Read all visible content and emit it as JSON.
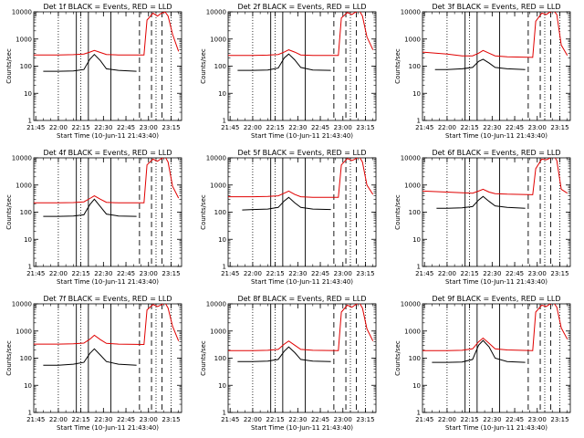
{
  "chart_data": [
    {
      "type": "line",
      "title": "Det 1f BLACK = Events, RED = LLD",
      "xlabel": "Start Time (10-Jun-11 21:43:40)",
      "ylabel": "Counts/sec",
      "yscale": "log",
      "ylim": [
        1,
        10000
      ],
      "xlim": [
        "21:43:40",
        "23:22:00"
      ],
      "x_ticks": [
        "21:45",
        "22:00",
        "22:15",
        "22:30",
        "22:45",
        "23:00",
        "23:15"
      ],
      "y_ticks": [
        "1",
        "10",
        "100",
        "1000",
        "10000"
      ],
      "grid": false,
      "series": [
        {
          "name": "Events",
          "color": "#000000",
          "x": [
            "21:50",
            "22:00",
            "22:10",
            "22:17",
            "22:21",
            "22:24",
            "22:28",
            "22:32",
            "22:40",
            "22:52"
          ],
          "values": [
            65,
            65,
            67,
            75,
            180,
            270,
            160,
            80,
            70,
            65
          ]
        },
        {
          "name": "LLD",
          "color": "#e00000",
          "x": [
            "21:43:40",
            "22:00",
            "22:10",
            "22:17",
            "22:21",
            "22:24",
            "22:28",
            "22:32",
            "22:40",
            "22:57",
            "22:59",
            "23:03",
            "23:06",
            "23:08",
            "23:11",
            "23:13",
            "23:16",
            "23:20"
          ],
          "values": [
            260,
            260,
            265,
            280,
            330,
            380,
            320,
            270,
            260,
            260,
            5000,
            9000,
            7000,
            8500,
            10000,
            7000,
            1500,
            350
          ]
        }
      ]
    },
    {
      "type": "line",
      "title": "Det 2f BLACK = Events, RED = LLD",
      "xlabel": "Start Time (10-Jun-11 21:43:40)",
      "ylabel": "Counts/sec",
      "yscale": "log",
      "ylim": [
        1,
        10000
      ],
      "xlim": [
        "21:43:40",
        "23:22:00"
      ],
      "x_ticks": [
        "21:45",
        "22:00",
        "22:15",
        "22:30",
        "22:45",
        "23:00",
        "23:15"
      ],
      "y_ticks": [
        "1",
        "10",
        "100",
        "1000",
        "10000"
      ],
      "grid": false,
      "series": [
        {
          "name": "Events",
          "color": "#000000",
          "x": [
            "21:50",
            "22:00",
            "22:10",
            "22:17",
            "22:21",
            "22:24",
            "22:28",
            "22:32",
            "22:40",
            "22:52"
          ],
          "values": [
            70,
            70,
            72,
            85,
            200,
            280,
            170,
            90,
            72,
            70
          ]
        },
        {
          "name": "LLD",
          "color": "#e00000",
          "x": [
            "21:43:40",
            "22:00",
            "22:10",
            "22:17",
            "22:21",
            "22:24",
            "22:28",
            "22:32",
            "22:40",
            "22:57",
            "22:59",
            "23:03",
            "23:06",
            "23:08",
            "23:11",
            "23:13",
            "23:16",
            "23:20"
          ],
          "values": [
            250,
            250,
            255,
            270,
            330,
            400,
            330,
            260,
            250,
            250,
            6000,
            9500,
            8000,
            9500,
            11000,
            7000,
            1200,
            400
          ]
        }
      ]
    },
    {
      "type": "line",
      "title": "Det 3f BLACK = Events, RED = LLD",
      "xlabel": "Start Time (10-Jun-11 21:43:40)",
      "ylabel": "Counts/sec",
      "yscale": "log",
      "ylim": [
        1,
        10000
      ],
      "xlim": [
        "21:43:40",
        "23:22:00"
      ],
      "x_ticks": [
        "21:45",
        "22:00",
        "22:15",
        "22:30",
        "22:45",
        "23:00",
        "23:15"
      ],
      "y_ticks": [
        "1",
        "10",
        "100",
        "1000",
        "10000"
      ],
      "grid": false,
      "series": [
        {
          "name": "Events",
          "color": "#000000",
          "x": [
            "21:52",
            "22:00",
            "22:10",
            "22:17",
            "22:21",
            "22:24",
            "22:28",
            "22:32",
            "22:40",
            "22:52"
          ],
          "values": [
            75,
            75,
            80,
            90,
            150,
            180,
            130,
            90,
            80,
            75
          ]
        },
        {
          "name": "LLD",
          "color": "#e00000",
          "x": [
            "21:43:40",
            "22:00",
            "22:10",
            "22:17",
            "22:21",
            "22:24",
            "22:28",
            "22:32",
            "22:40",
            "22:57",
            "22:59",
            "23:03",
            "23:06",
            "23:08",
            "23:11",
            "23:13",
            "23:16",
            "23:20"
          ],
          "values": [
            330,
            280,
            240,
            240,
            300,
            380,
            300,
            240,
            220,
            210,
            4500,
            9000,
            8000,
            9500,
            11000,
            8000,
            600,
            250
          ]
        }
      ]
    },
    {
      "type": "line",
      "title": "Det 4f BLACK = Events, RED = LLD",
      "xlabel": "Start Time (10-Jun-11 21:43:40)",
      "ylabel": "Counts/sec",
      "yscale": "log",
      "ylim": [
        1,
        10000
      ],
      "xlim": [
        "21:43:40",
        "23:22:00"
      ],
      "x_ticks": [
        "21:45",
        "22:00",
        "22:15",
        "22:30",
        "22:45",
        "23:00",
        "23:15"
      ],
      "y_ticks": [
        "1",
        "10",
        "100",
        "1000",
        "10000"
      ],
      "grid": false,
      "series": [
        {
          "name": "Events",
          "color": "#000000",
          "x": [
            "21:50",
            "22:00",
            "22:10",
            "22:17",
            "22:21",
            "22:24",
            "22:28",
            "22:32",
            "22:40",
            "22:52"
          ],
          "values": [
            70,
            70,
            72,
            80,
            190,
            300,
            160,
            85,
            72,
            70
          ]
        },
        {
          "name": "LLD",
          "color": "#e00000",
          "x": [
            "21:43:40",
            "22:00",
            "22:10",
            "22:17",
            "22:21",
            "22:24",
            "22:28",
            "22:32",
            "22:40",
            "22:57",
            "22:59",
            "23:03",
            "23:06",
            "23:08",
            "23:11",
            "23:13",
            "23:16",
            "23:20"
          ],
          "values": [
            220,
            220,
            225,
            240,
            320,
            400,
            300,
            230,
            220,
            220,
            5500,
            9000,
            7500,
            9000,
            11000,
            7000,
            900,
            330
          ]
        }
      ]
    },
    {
      "type": "line",
      "title": "Det 5f BLACK = Events, RED = LLD",
      "xlabel": "Start Time (10-Jun-11 21:43:40)",
      "ylabel": "Counts/sec",
      "yscale": "log",
      "ylim": [
        1,
        10000
      ],
      "xlim": [
        "21:43:40",
        "23:22:00"
      ],
      "x_ticks": [
        "21:45",
        "22:00",
        "22:15",
        "22:30",
        "22:45",
        "23:00",
        "23:15"
      ],
      "y_ticks": [
        "1",
        "10",
        "100",
        "1000",
        "10000"
      ],
      "grid": false,
      "series": [
        {
          "name": "Events",
          "color": "#000000",
          "x": [
            "21:53",
            "22:00",
            "22:10",
            "22:17",
            "22:21",
            "22:24",
            "22:28",
            "22:32",
            "22:40",
            "22:52"
          ],
          "values": [
            120,
            125,
            130,
            150,
            260,
            350,
            220,
            150,
            130,
            125
          ]
        },
        {
          "name": "LLD",
          "color": "#e00000",
          "x": [
            "21:43:40",
            "22:00",
            "22:10",
            "22:17",
            "22:21",
            "22:24",
            "22:28",
            "22:32",
            "22:40",
            "22:57",
            "22:59",
            "23:03",
            "23:06",
            "23:08",
            "23:11",
            "23:13",
            "23:16",
            "23:20"
          ],
          "values": [
            370,
            370,
            380,
            400,
            500,
            600,
            450,
            370,
            350,
            350,
            5500,
            9500,
            8000,
            9000,
            11000,
            7000,
            1000,
            450
          ]
        }
      ]
    },
    {
      "type": "line",
      "title": "Det 6f BLACK = Events, RED = LLD",
      "xlabel": "Start Time (10-Jun-11 21:43:40)",
      "ylabel": "Counts/sec",
      "yscale": "log",
      "ylim": [
        1,
        10000
      ],
      "xlim": [
        "21:43:40",
        "23:22:00"
      ],
      "x_ticks": [
        "21:45",
        "22:00",
        "22:15",
        "22:30",
        "22:45",
        "23:00",
        "23:15"
      ],
      "y_ticks": [
        "1",
        "10",
        "100",
        "1000",
        "10000"
      ],
      "grid": false,
      "series": [
        {
          "name": "Events",
          "color": "#000000",
          "x": [
            "21:53",
            "22:00",
            "22:10",
            "22:17",
            "22:21",
            "22:24",
            "22:28",
            "22:32",
            "22:40",
            "22:52"
          ],
          "values": [
            140,
            140,
            145,
            160,
            280,
            380,
            250,
            170,
            150,
            140
          ]
        },
        {
          "name": "LLD",
          "color": "#e00000",
          "x": [
            "21:43:40",
            "22:00",
            "22:10",
            "22:17",
            "22:21",
            "22:24",
            "22:28",
            "22:32",
            "22:40",
            "22:57",
            "22:59",
            "23:03",
            "23:06",
            "23:08",
            "23:11",
            "23:13",
            "23:16",
            "23:20"
          ],
          "values": [
            600,
            550,
            520,
            500,
            600,
            700,
            550,
            480,
            460,
            440,
            4000,
            9000,
            8500,
            9500,
            12000,
            8000,
            700,
            500
          ]
        }
      ]
    },
    {
      "type": "line",
      "title": "Det 7f BLACK = Events, RED = LLD",
      "xlabel": "Start Time (10-Jun-11 21:43:40)",
      "ylabel": "Counts/sec",
      "yscale": "log",
      "ylim": [
        1,
        10000
      ],
      "xlim": [
        "21:43:40",
        "23:22:00"
      ],
      "x_ticks": [
        "21:45",
        "22:00",
        "22:15",
        "22:30",
        "22:45",
        "23:00",
        "23:15"
      ],
      "y_ticks": [
        "1",
        "10",
        "100",
        "1000",
        "10000"
      ],
      "grid": false,
      "series": [
        {
          "name": "Events",
          "color": "#000000",
          "x": [
            "21:50",
            "22:00",
            "22:10",
            "22:17",
            "22:21",
            "22:24",
            "22:28",
            "22:32",
            "22:40",
            "22:52"
          ],
          "values": [
            55,
            55,
            60,
            70,
            150,
            220,
            130,
            75,
            60,
            55
          ]
        },
        {
          "name": "LLD",
          "color": "#e00000",
          "x": [
            "21:43:40",
            "22:00",
            "22:10",
            "22:17",
            "22:21",
            "22:24",
            "22:28",
            "22:32",
            "22:40",
            "22:57",
            "22:59",
            "23:03",
            "23:06",
            "23:08",
            "23:11",
            "23:13",
            "23:16",
            "23:20"
          ],
          "values": [
            330,
            330,
            340,
            360,
            500,
            700,
            480,
            350,
            330,
            320,
            6000,
            9500,
            8000,
            9000,
            11000,
            7000,
            1500,
            430
          ]
        }
      ]
    },
    {
      "type": "line",
      "title": "Det 8f BLACK = Events, RED = LLD",
      "xlabel": "Start Time (10-Jun-11 21:43:40)",
      "ylabel": "Counts/sec",
      "yscale": "log",
      "ylim": [
        1,
        10000
      ],
      "xlim": [
        "21:43:40",
        "23:22:00"
      ],
      "x_ticks": [
        "21:45",
        "22:00",
        "22:15",
        "22:30",
        "22:45",
        "23:00",
        "23:15"
      ],
      "y_ticks": [
        "1",
        "10",
        "100",
        "1000",
        "10000"
      ],
      "grid": false,
      "series": [
        {
          "name": "Events",
          "color": "#000000",
          "x": [
            "21:50",
            "22:00",
            "22:10",
            "22:17",
            "22:21",
            "22:24",
            "22:28",
            "22:32",
            "22:40",
            "22:52"
          ],
          "values": [
            75,
            75,
            78,
            90,
            180,
            260,
            160,
            90,
            78,
            75
          ]
        },
        {
          "name": "LLD",
          "color": "#e00000",
          "x": [
            "21:43:40",
            "22:00",
            "22:10",
            "22:17",
            "22:21",
            "22:24",
            "22:28",
            "22:32",
            "22:40",
            "22:57",
            "22:59",
            "23:03",
            "23:06",
            "23:08",
            "23:11",
            "23:13",
            "23:16",
            "23:20"
          ],
          "values": [
            190,
            190,
            195,
            210,
            330,
            430,
            300,
            210,
            195,
            190,
            5000,
            9000,
            7500,
            9000,
            11000,
            7000,
            1200,
            430
          ]
        }
      ]
    },
    {
      "type": "line",
      "title": "Det 9f BLACK = Events, RED = LLD",
      "xlabel": "Start Time (10-Jun-11 21:43:40)",
      "ylabel": "Counts/sec",
      "yscale": "log",
      "ylim": [
        1,
        10000
      ],
      "xlim": [
        "21:43:40",
        "23:22:00"
      ],
      "x_ticks": [
        "21:45",
        "22:00",
        "22:15",
        "22:30",
        "22:45",
        "23:00",
        "23:15"
      ],
      "y_ticks": [
        "1",
        "10",
        "100",
        "1000",
        "10000"
      ],
      "grid": false,
      "series": [
        {
          "name": "Events",
          "color": "#000000",
          "x": [
            "21:50",
            "22:00",
            "22:10",
            "22:17",
            "22:21",
            "22:24",
            "22:28",
            "22:32",
            "22:40",
            "22:52"
          ],
          "values": [
            70,
            70,
            72,
            90,
            300,
            450,
            260,
            100,
            75,
            70
          ]
        },
        {
          "name": "LLD",
          "color": "#e00000",
          "x": [
            "21:43:40",
            "22:00",
            "22:10",
            "22:17",
            "22:21",
            "22:24",
            "22:28",
            "22:32",
            "22:40",
            "22:57",
            "22:59",
            "23:03",
            "23:06",
            "23:08",
            "23:11",
            "23:13",
            "23:16",
            "23:20"
          ],
          "values": [
            190,
            190,
            195,
            220,
            400,
            550,
            350,
            220,
            200,
            190,
            5000,
            9000,
            8000,
            9500,
            11000,
            7500,
            1300,
            500
          ]
        }
      ]
    }
  ],
  "annotations": {
    "dotted_times": [
      "22:00",
      "22:15",
      "23:05",
      "23:15"
    ],
    "solid_times": [
      "22:12",
      "22:20",
      "22:35"
    ],
    "dashed_times": [
      "22:54",
      "23:02",
      "23:09"
    ],
    "lines_note": "vertical markers"
  },
  "colors": {
    "events": "#000000",
    "lld": "#e00000",
    "background": "#ffffff"
  }
}
